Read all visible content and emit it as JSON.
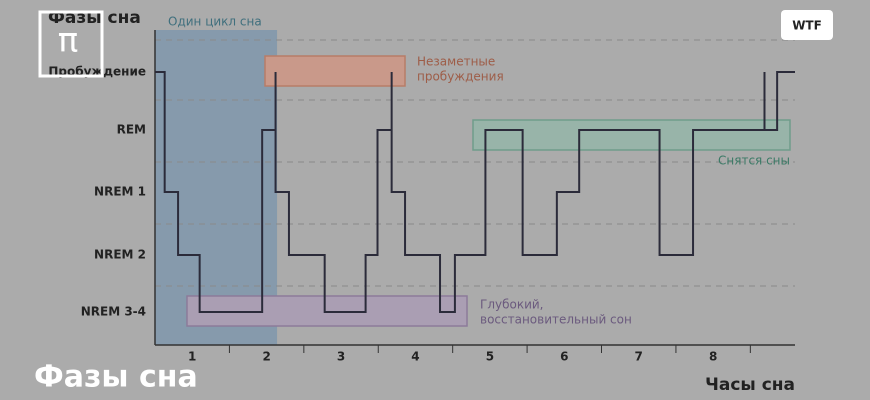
{
  "chart_data": {
    "type": "step",
    "title": "Фазы сна",
    "x_label": "Часы сна",
    "y_categories": [
      "Пробуждение",
      "REM",
      "NREM 1",
      "NREM 2",
      "NREM 3-4"
    ],
    "hour_labels": [
      "1",
      "2",
      "3",
      "4",
      "5",
      "6",
      "7",
      "8"
    ],
    "xlim": [
      0,
      8.6
    ],
    "series": [
      {
        "color": "#2b2b3a",
        "x": [
          0,
          0.13,
          0.31,
          0.6,
          1.44,
          1.62,
          1.62,
          1.8,
          2.28,
          2.83,
          2.99,
          3.18,
          3.18,
          3.36,
          3.83,
          4.03,
          4.44,
          4.94,
          5.4,
          5.7,
          6.78,
          7.23,
          8.19,
          8.19,
          8.36,
          8.6
        ],
        "values": [
          "Пробуждение",
          "NREM 1",
          "NREM 2",
          "NREM 3-4",
          "REM",
          "Пробуждение",
          "NREM 1",
          "NREM 2",
          "NREM 3-4",
          "NREM 2",
          "REM",
          "Пробуждение",
          "NREM 1",
          "NREM 2",
          "NREM 3-4",
          "NREM 2",
          "REM",
          "NREM 2",
          "NREM 1",
          "REM",
          "NREM 2",
          "REM",
          "Пробуждение",
          "REM",
          "Пробуждение",
          "Пробуждение"
        ]
      }
    ],
    "cycle": {
      "text": "Один цикл сна",
      "span": [
        0,
        1.64
      ]
    },
    "annotations": [
      {
        "lines": [
          "Незаметные",
          "пробуждения"
        ]
      },
      {
        "lines": [
          "Снятся сны"
        ]
      },
      {
        "lines": [
          "Глубокий,",
          "восстановительный сон"
        ]
      }
    ]
  },
  "overlay": {
    "logo": "π",
    "button": "WTF",
    "caption": "Фазы сна"
  }
}
